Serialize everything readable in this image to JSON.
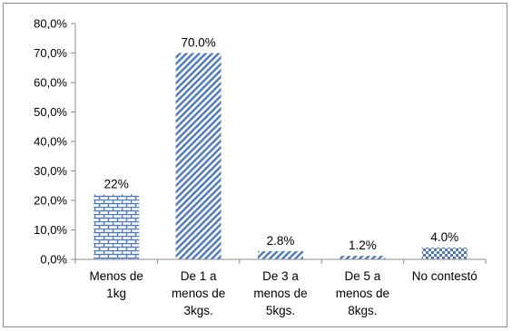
{
  "chart_data": {
    "type": "bar",
    "categories": [
      [
        "Menos de",
        "1kg"
      ],
      [
        "De 1 a",
        "menos de",
        "3kgs."
      ],
      [
        "De 3 a",
        "menos de",
        "5kgs."
      ],
      [
        "De 5 a",
        "menos de",
        "8kgs."
      ],
      [
        "No contestó"
      ]
    ],
    "values": [
      22,
      70,
      2.8,
      1.2,
      4
    ],
    "data_labels": [
      "22%",
      "70.0%",
      "2.8%",
      "1.2%",
      "4.0%"
    ],
    "yticks": [
      "0,0%",
      "10,0%",
      "20,0%",
      "30,0%",
      "40,0%",
      "50,0%",
      "60,0%",
      "70,0%",
      "80,0%"
    ],
    "ylim": [
      0,
      80
    ],
    "grid": false,
    "legend": "none",
    "title": "",
    "xlabel": "",
    "ylabel": "",
    "colors": {
      "bar_fill": "#4a78c4",
      "bar_background": "#ffffff",
      "axis": "#8c8c8c"
    },
    "patterns": [
      "brick",
      "diagonal",
      "diagonal",
      "diagonal",
      "checker"
    ]
  }
}
